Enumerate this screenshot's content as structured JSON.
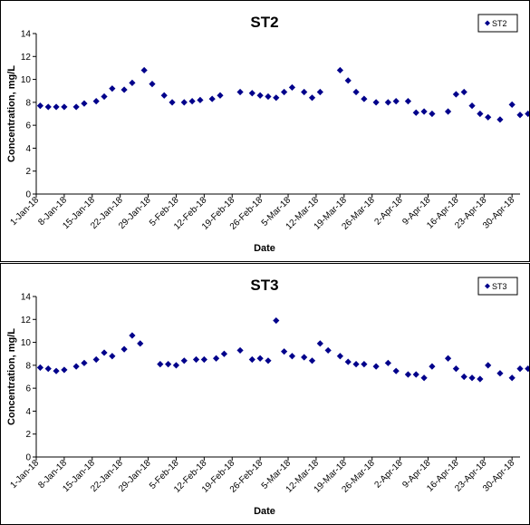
{
  "chart_data": [
    {
      "type": "scatter",
      "title": "ST2",
      "xlabel": "Date",
      "ylabel": "Concentration, mg/L",
      "ylim": [
        0,
        14
      ],
      "yticks": [
        "0",
        "2",
        "4",
        "6",
        "8",
        "10",
        "12",
        "14"
      ],
      "xlim": [
        "2018-01-01",
        "2018-05-02"
      ],
      "xticks": [
        "1-Jan-18",
        "8-Jan-18",
        "15-Jan-18",
        "22-Jan-18",
        "29-Jan-18",
        "5-Feb-18",
        "12-Feb-18",
        "19-Feb-18",
        "26-Feb-18",
        "5-Mar-18",
        "12-Mar-18",
        "19-Mar-18",
        "26-Mar-18",
        "2-Apr-18",
        "9-Apr-18",
        "16-Apr-18",
        "23-Apr-18",
        "30-Apr-18"
      ],
      "grid": false,
      "legend": "top-right",
      "marker_color": "#00008B",
      "series": [
        {
          "name": "ST2",
          "x": [
            "2018-01-02",
            "2018-01-04",
            "2018-01-06",
            "2018-01-08",
            "2018-01-11",
            "2018-01-13",
            "2018-01-16",
            "2018-01-18",
            "2018-01-20",
            "2018-01-23",
            "2018-01-25",
            "2018-01-28",
            "2018-01-30",
            "2018-02-02",
            "2018-02-04",
            "2018-02-07",
            "2018-02-09",
            "2018-02-11",
            "2018-02-14",
            "2018-02-16",
            "2018-02-21",
            "2018-02-24",
            "2018-02-26",
            "2018-02-28",
            "2018-03-02",
            "2018-03-04",
            "2018-03-06",
            "2018-03-09",
            "2018-03-11",
            "2018-03-13",
            "2018-03-18",
            "2018-03-20",
            "2018-03-22",
            "2018-03-24",
            "2018-03-27",
            "2018-03-30",
            "2018-04-01",
            "2018-04-04",
            "2018-04-06",
            "2018-04-08",
            "2018-04-10",
            "2018-04-14",
            "2018-04-16",
            "2018-04-18",
            "2018-04-20",
            "2018-04-22",
            "2018-04-24",
            "2018-04-27",
            "2018-04-30",
            "2018-05-02",
            "2018-05-04"
          ],
          "y": [
            7.7,
            7.6,
            7.6,
            7.6,
            7.6,
            7.9,
            8.1,
            8.5,
            9.2,
            9.1,
            9.7,
            10.8,
            9.6,
            8.6,
            8.0,
            8.0,
            8.1,
            8.2,
            8.3,
            8.6,
            8.9,
            8.8,
            8.6,
            8.5,
            8.4,
            8.9,
            9.3,
            8.9,
            8.4,
            8.9,
            10.8,
            9.9,
            8.9,
            8.3,
            8.0,
            8.0,
            8.1,
            8.1,
            7.1,
            7.2,
            7.0,
            7.2,
            8.7,
            8.9,
            7.7,
            7.0,
            6.7,
            6.5,
            7.8,
            6.9,
            7.0
          ]
        }
      ]
    },
    {
      "type": "scatter",
      "title": "ST3",
      "xlabel": "Date",
      "ylabel": "Concentration, mg/L",
      "ylim": [
        0,
        14
      ],
      "yticks": [
        "0",
        "2",
        "4",
        "6",
        "8",
        "10",
        "12",
        "14"
      ],
      "xlim": [
        "2018-01-01",
        "2018-05-02"
      ],
      "xticks": [
        "1-Jan-18",
        "8-Jan-18",
        "15-Jan-18",
        "22-Jan-18",
        "29-Jan-18",
        "5-Feb-18",
        "12-Feb-18",
        "19-Feb-18",
        "26-Feb-18",
        "5-Mar-18",
        "12-Mar-18",
        "19-Mar-18",
        "26-Mar-18",
        "2-Apr-18",
        "9-Apr-18",
        "16-Apr-18",
        "23-Apr-18",
        "30-Apr-18"
      ],
      "grid": false,
      "legend": "top-right",
      "marker_color": "#00008B",
      "series": [
        {
          "name": "ST3",
          "x": [
            "2018-01-02",
            "2018-01-04",
            "2018-01-06",
            "2018-01-08",
            "2018-01-11",
            "2018-01-13",
            "2018-01-16",
            "2018-01-18",
            "2018-01-20",
            "2018-01-23",
            "2018-01-25",
            "2018-01-27",
            "2018-02-01",
            "2018-02-03",
            "2018-02-05",
            "2018-02-07",
            "2018-02-10",
            "2018-02-12",
            "2018-02-15",
            "2018-02-17",
            "2018-02-21",
            "2018-02-24",
            "2018-02-26",
            "2018-02-28",
            "2018-03-02",
            "2018-03-04",
            "2018-03-06",
            "2018-03-09",
            "2018-03-11",
            "2018-03-13",
            "2018-03-15",
            "2018-03-18",
            "2018-03-20",
            "2018-03-22",
            "2018-03-24",
            "2018-03-27",
            "2018-03-30",
            "2018-04-01",
            "2018-04-04",
            "2018-04-06",
            "2018-04-08",
            "2018-04-10",
            "2018-04-14",
            "2018-04-16",
            "2018-04-18",
            "2018-04-20",
            "2018-04-22",
            "2018-04-24",
            "2018-04-27",
            "2018-04-30",
            "2018-05-02",
            "2018-05-04"
          ],
          "y": [
            7.8,
            7.7,
            7.5,
            7.6,
            7.9,
            8.2,
            8.5,
            9.1,
            8.8,
            9.4,
            10.6,
            9.9,
            8.1,
            8.1,
            8.0,
            8.4,
            8.5,
            8.5,
            8.6,
            9.0,
            9.3,
            8.5,
            8.6,
            8.4,
            11.9,
            9.2,
            8.8,
            8.7,
            8.4,
            9.9,
            9.3,
            8.8,
            8.3,
            8.1,
            8.1,
            7.9,
            8.2,
            7.5,
            7.2,
            7.2,
            6.9,
            7.9,
            8.6,
            7.7,
            7.0,
            6.9,
            6.8,
            8.0,
            7.3,
            6.9,
            7.7,
            7.7
          ]
        }
      ]
    }
  ]
}
